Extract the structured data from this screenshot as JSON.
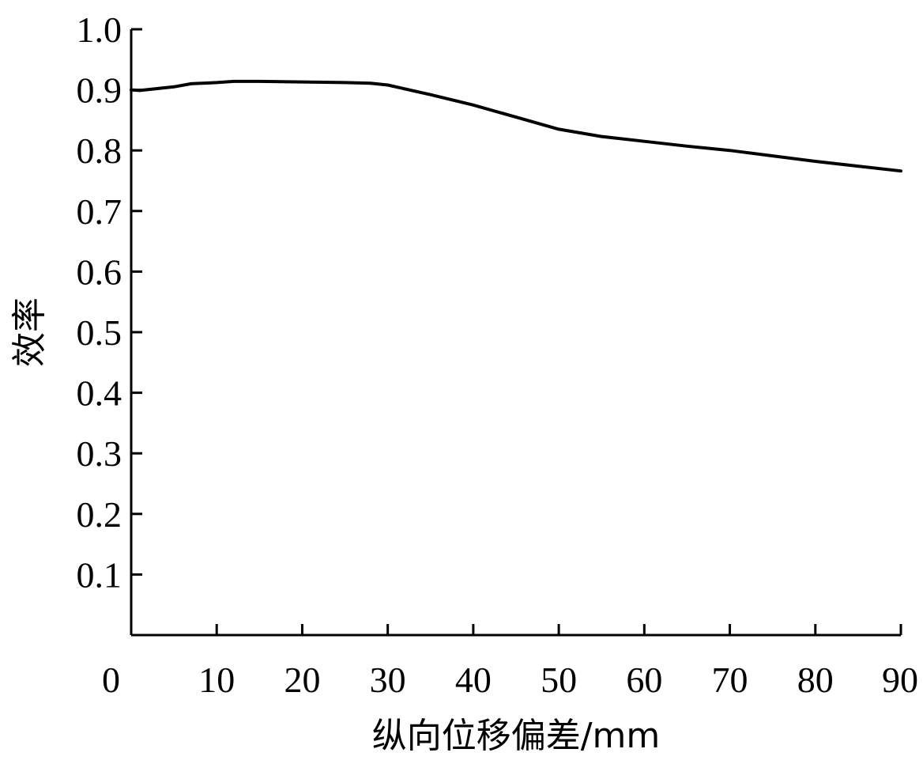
{
  "chart_data": {
    "type": "line",
    "title": "",
    "xlabel": "纵向位移偏差/mm",
    "ylabel": "效率",
    "xlim": [
      0,
      90
    ],
    "ylim": [
      0,
      1.0
    ],
    "xticks": [
      "0",
      "10",
      "20",
      "30",
      "40",
      "50",
      "60",
      "70",
      "80",
      "90"
    ],
    "yticks": [
      "0.1",
      "0.2",
      "0.3",
      "0.4",
      "0.5",
      "0.6",
      "0.7",
      "0.8",
      "0.9",
      "1.0"
    ],
    "grid": false,
    "legend": "none",
    "series": [
      {
        "color": "#000000",
        "x": [
          0,
          1,
          5,
          7,
          10,
          12,
          15,
          20,
          25,
          28,
          30,
          35,
          40,
          45,
          50,
          55,
          60,
          65,
          70,
          75,
          80,
          85,
          90
        ],
        "y": [
          0.9,
          0.899,
          0.905,
          0.91,
          0.912,
          0.914,
          0.914,
          0.913,
          0.912,
          0.911,
          0.908,
          0.892,
          0.875,
          0.855,
          0.835,
          0.823,
          0.815,
          0.807,
          0.8,
          0.791,
          0.782,
          0.774,
          0.766
        ]
      }
    ]
  }
}
